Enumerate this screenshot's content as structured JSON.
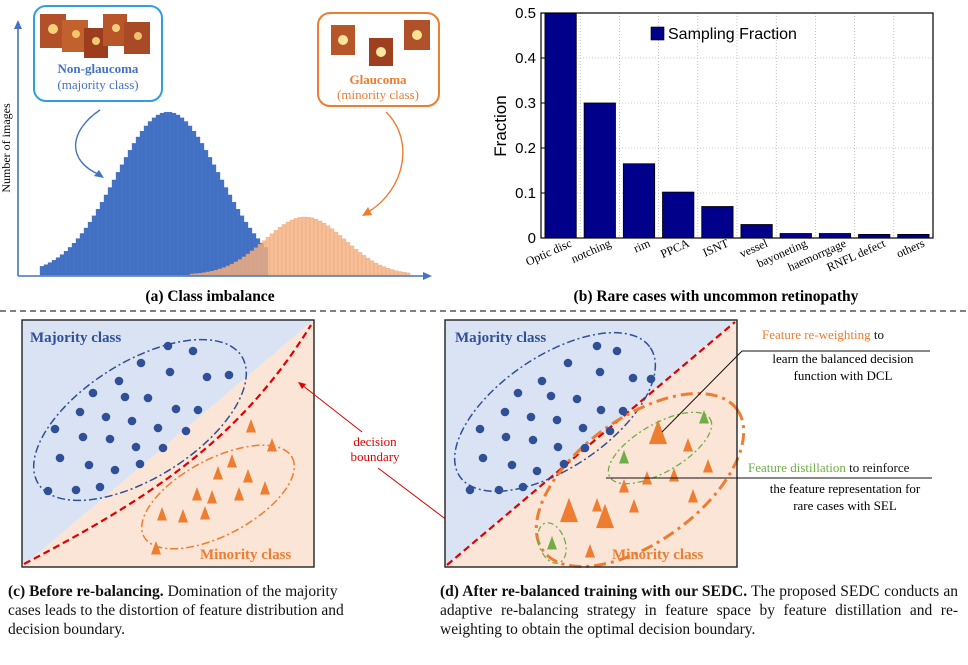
{
  "panel_a": {
    "caption": "(a) Class imbalance",
    "ylabel": "Number of images",
    "non_glaucoma_title": "Non-glaucoma",
    "non_glaucoma_sub": "(majority class)",
    "glaucoma_title": "Glaucoma",
    "glaucoma_sub": "(minority class)"
  },
  "panel_b": {
    "caption": "(b) Rare cases with uncommon retinopathy"
  },
  "chart_data": {
    "type": "bar",
    "ylabel": "Fraction",
    "legend": "Sampling Fraction",
    "legend_position": "top-right",
    "categories": [
      "Optic disc",
      "notching",
      "rim",
      "PPCA",
      "ISNT",
      "vessel",
      "bayoneting",
      "haemorrgage",
      "RNFL defect",
      "others"
    ],
    "values": [
      0.5,
      0.3,
      0.165,
      0.102,
      0.07,
      0.03,
      0.01,
      0.01,
      0.008,
      0.008
    ],
    "ylim": [
      0,
      0.5
    ],
    "yticks": [
      "0",
      "0.1",
      "0.2",
      "0.3",
      "0.4",
      "0.5"
    ],
    "bar_color": "#00008b",
    "grid": true
  },
  "panel_c": {
    "majority_label": "Majority class",
    "minority_label": "Minority class",
    "decision_line1": "decision",
    "decision_line2": "boundary",
    "caption_bold": "(c) Before re-balancing.",
    "caption_rest": " Domination of the majority cases leads to the distortion of feature distribution and decision boundary."
  },
  "panel_d": {
    "majority_label": "Majority class",
    "minority_label": "Minority class",
    "reweight_highlight": "Feature re-weighting",
    "reweight_rest1": " to",
    "reweight_line2": "learn the balanced decision",
    "reweight_line3": "function with DCL",
    "distill_highlight": "Feature distillation",
    "distill_rest1": " to reinforce",
    "distill_line2": "the feature representation for",
    "distill_line3": "rare cases with SEL",
    "caption_bold": "(d) After re-balanced training with our SEDC.",
    "caption_rest": " The proposed SEDC conducts an adaptive re-balancing strategy in feature space by feature distillation and re-weighting to obtain the optimal decision boundary."
  },
  "colors": {
    "majority_bar": "#4472c4",
    "minority_bar": "#f4b183",
    "majority_dot": "#2f4f96",
    "minority_tri": "#ed7d31",
    "distill_tri": "#70ad47",
    "majority_bg": "#dae3f3",
    "minority_bg": "#fbe5d6",
    "boundary": "#e00000",
    "callout_blue": "#2f9fe0",
    "callout_orange": "#ed7d31"
  }
}
